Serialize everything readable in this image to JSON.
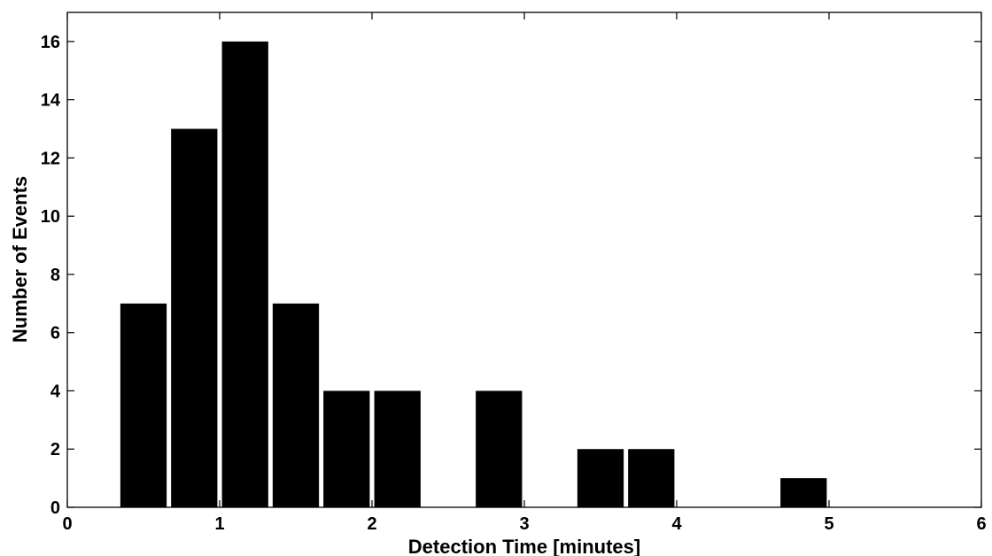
{
  "chart_data": {
    "type": "bar",
    "title": "",
    "xlabel": "Detection Time [minutes]",
    "ylabel": "Number of Events",
    "xlim": [
      0,
      6
    ],
    "ylim": [
      0,
      17
    ],
    "xticks": [
      0,
      1,
      2,
      3,
      4,
      5,
      6
    ],
    "yticks": [
      0,
      2,
      4,
      6,
      8,
      10,
      12,
      14,
      16
    ],
    "grid": false,
    "bin_width": 0.333,
    "series": [
      {
        "x": [
          0.5,
          0.833,
          1.167,
          1.5,
          1.833,
          2.167,
          2.5,
          2.833,
          3.167,
          3.5,
          3.833,
          4.167,
          4.5,
          4.833
        ],
        "values": [
          7,
          13,
          16,
          7,
          4,
          4,
          0,
          4,
          0,
          2,
          2,
          0,
          0,
          1
        ]
      }
    ],
    "colors": {
      "bar": "#000000",
      "axis": "#000000",
      "background": "#ffffff"
    }
  }
}
